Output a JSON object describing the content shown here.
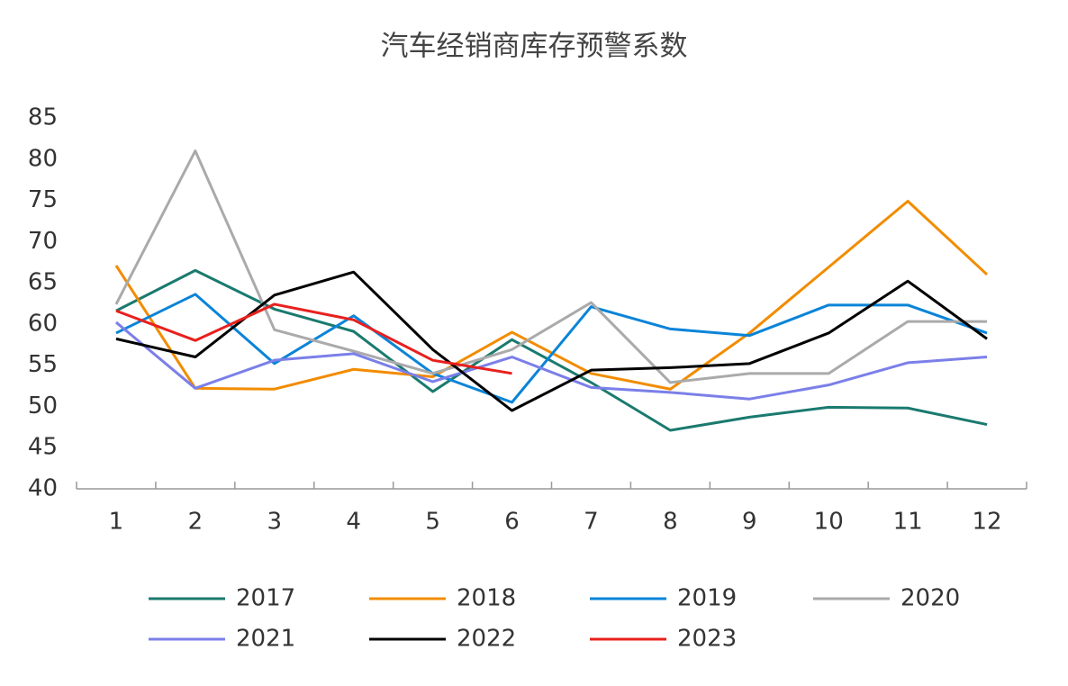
{
  "chart_data": {
    "type": "line",
    "title": "汽车经销商库存预警系数",
    "categories": [
      "1",
      "2",
      "3",
      "4",
      "5",
      "6",
      "7",
      "8",
      "9",
      "10",
      "11",
      "12"
    ],
    "ylim": [
      40,
      85
    ],
    "yticks": [
      40,
      45,
      50,
      55,
      60,
      65,
      70,
      75,
      80,
      85
    ],
    "grid": false,
    "series": [
      {
        "name": "2017",
        "color": "#1a7a6e",
        "values": [
          61.6,
          66.5,
          61.8,
          59.1,
          51.8,
          58.1,
          52.9,
          47.1,
          48.7,
          49.9,
          49.8,
          47.8
        ]
      },
      {
        "name": "2018",
        "color": "#f28c00",
        "values": [
          67.1,
          52.2,
          52.1,
          54.5,
          53.6,
          59.0,
          54.0,
          52.1,
          58.9,
          66.9,
          74.9,
          66.0
        ]
      },
      {
        "name": "2019",
        "color": "#0a84d8",
        "values": [
          58.9,
          63.6,
          55.2,
          61.0,
          54.0,
          50.5,
          62.1,
          59.4,
          58.6,
          62.3,
          62.3,
          58.9
        ]
      },
      {
        "name": "2020",
        "color": "#aaaaaa",
        "values": [
          62.4,
          81.0,
          59.3,
          56.7,
          54.0,
          56.9,
          62.6,
          52.9,
          54.0,
          54.0,
          60.3,
          60.3
        ]
      },
      {
        "name": "2021",
        "color": "#7b7fe8",
        "values": [
          60.2,
          52.2,
          55.6,
          56.4,
          53.0,
          56.0,
          52.3,
          51.7,
          50.9,
          52.6,
          55.3,
          56.0
        ]
      },
      {
        "name": "2022",
        "color": "#000000",
        "values": [
          58.2,
          56.0,
          63.5,
          66.3,
          56.9,
          49.5,
          54.4,
          54.7,
          55.2,
          58.9,
          65.2,
          58.2
        ]
      },
      {
        "name": "2023",
        "color": "#e8201e",
        "values": [
          61.6,
          58.0,
          62.4,
          60.5,
          55.6,
          54.0,
          null,
          null,
          null,
          null,
          null,
          null
        ]
      }
    ]
  }
}
